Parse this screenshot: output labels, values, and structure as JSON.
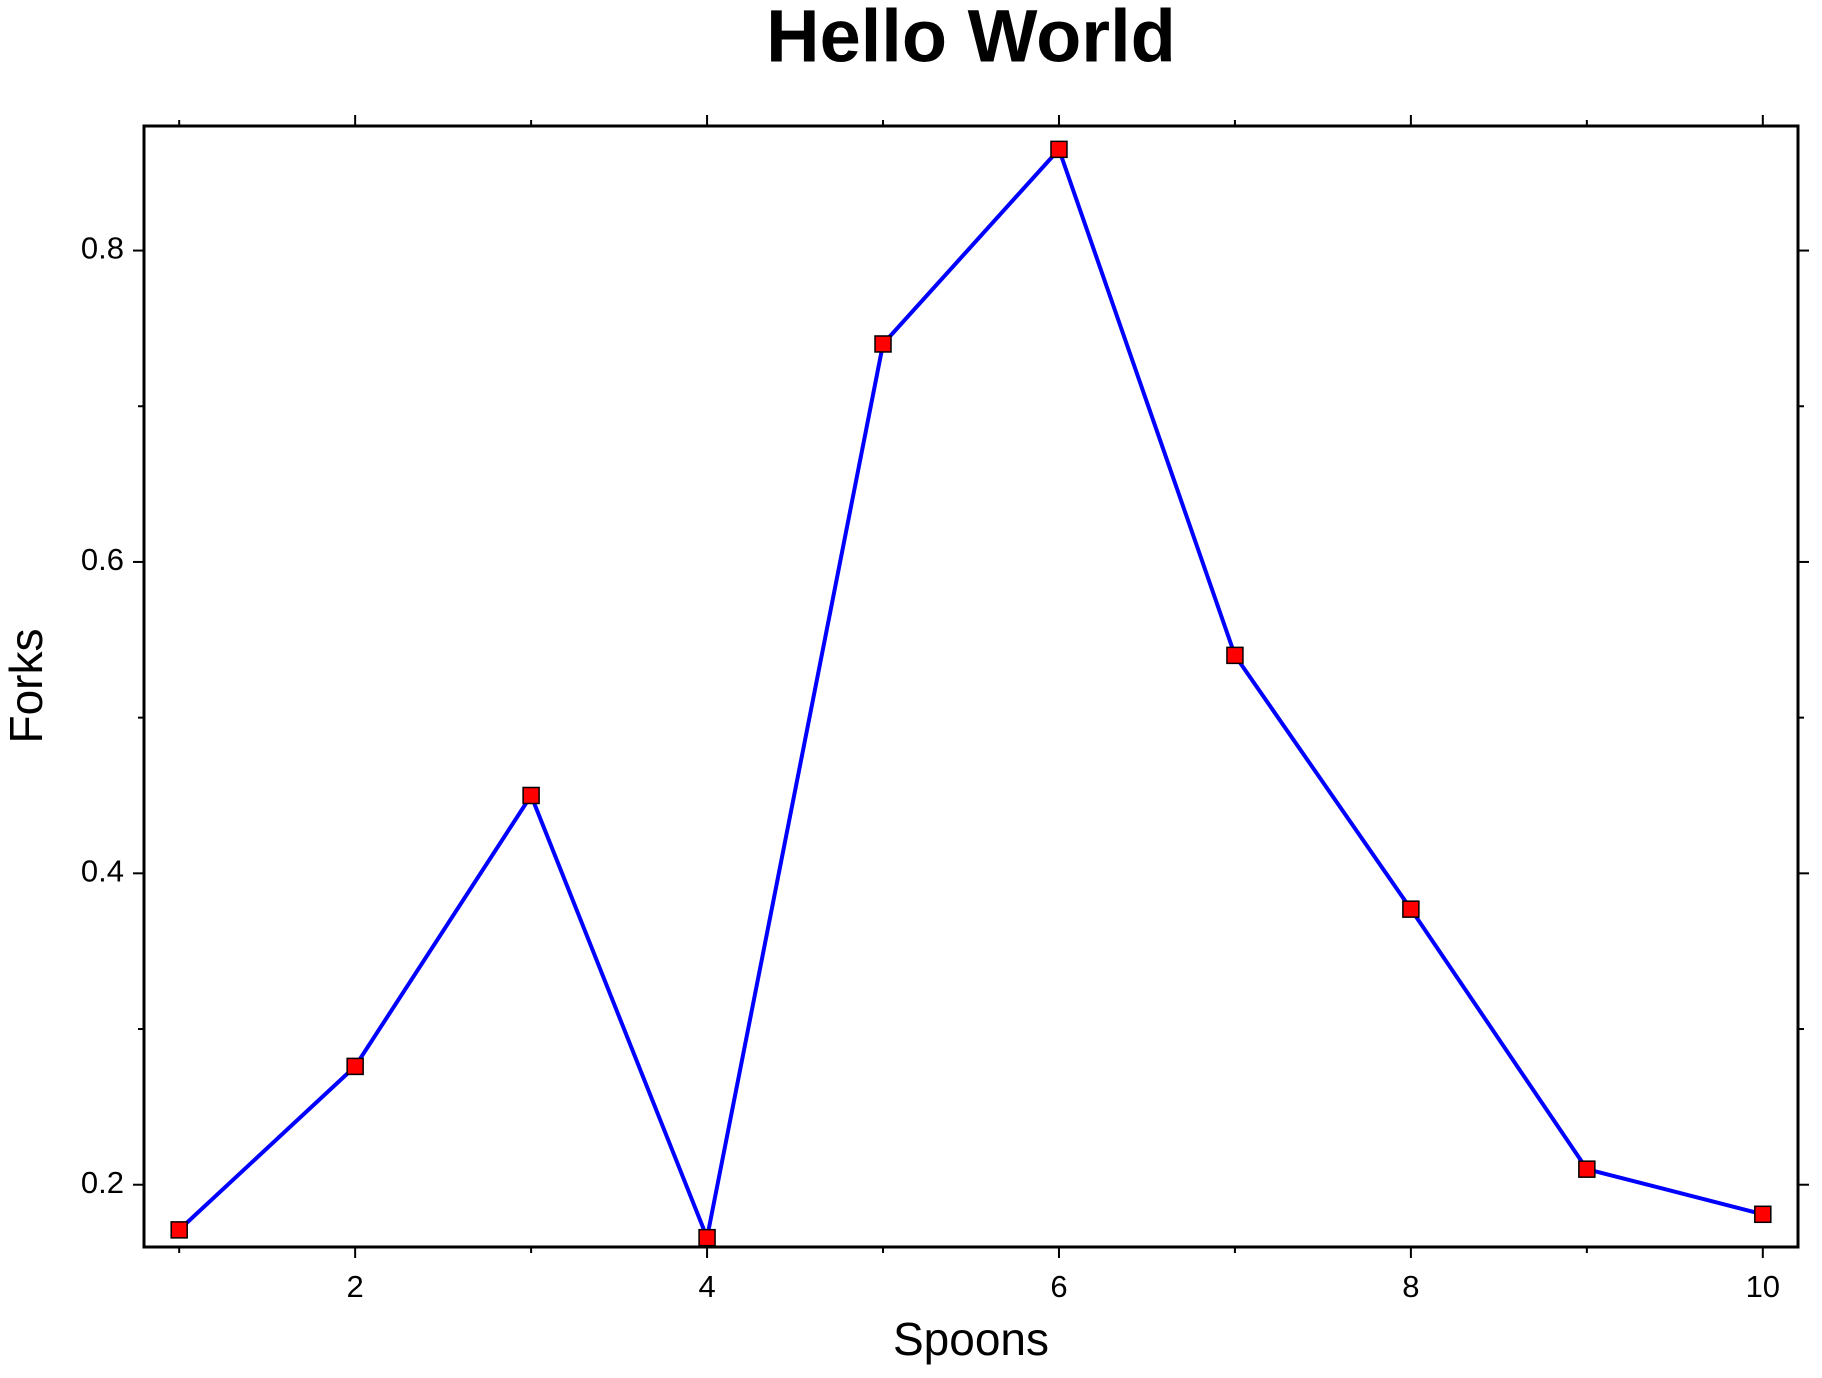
{
  "chart_data": {
    "type": "line",
    "title": "Hello World",
    "x_label": "Spoons",
    "y_label": "Forks",
    "x": [
      1,
      2,
      3,
      4,
      5,
      6,
      7,
      8,
      9,
      10
    ],
    "series": [
      {
        "color": "#0000ff",
        "marker_color": "#ff0000",
        "values": [
          0.171,
          0.276,
          0.45,
          0.166,
          0.74,
          0.865,
          0.54,
          0.377,
          0.21,
          0.181
        ]
      }
    ],
    "xlim": [
      0.8,
      10.2
    ],
    "ylim": [
      0.16,
      0.88
    ],
    "xticks": [
      2,
      4,
      6,
      8,
      10
    ],
    "yticks": [
      0.2,
      0.4,
      0.6,
      0.8
    ],
    "xminorticks": [
      1,
      3,
      5,
      7,
      9
    ],
    "yminorticks": [
      0.3,
      0.5,
      0.7
    ]
  }
}
